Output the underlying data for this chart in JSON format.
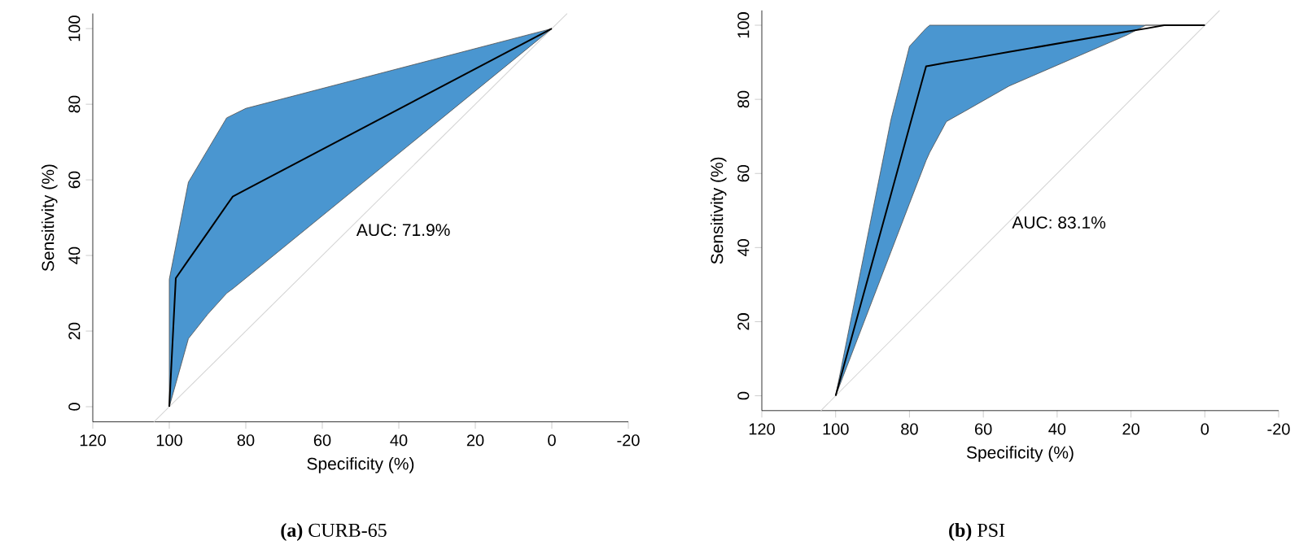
{
  "chart_data": [
    {
      "type": "line",
      "xlabel": "Specificity (%)",
      "ylabel": "Sensitivity (%)",
      "xlim": [
        120,
        -20
      ],
      "ylim": [
        -4,
        104
      ],
      "xticks": [
        120,
        100,
        80,
        60,
        40,
        20,
        0,
        -20
      ],
      "yticks": [
        0,
        20,
        40,
        60,
        80,
        100
      ],
      "grid": false,
      "marker": "none",
      "line_style": "solid",
      "annotations": [
        "AUC: 71.9%",
        "**(a)** CURB-65"
      ],
      "series": [
        {
          "color": "#d3d3d3",
          "x": [
            104,
            -4
          ],
          "values": [
            -4,
            104
          ]
        },
        {
          "color": "#000000",
          "x": [
            100,
            98.3,
            95,
            90,
            85,
            83.4,
            80,
            0
          ],
          "values": [
            0,
            34,
            38.8,
            46.0,
            53.3,
            55.6,
            57.4,
            100
          ],
          "lower": [
            0,
            6.1,
            18,
            24.4,
            30,
            31.2,
            34,
            100
          ],
          "upper": [
            33.7,
            42.4,
            59.4,
            67.9,
            76.4,
            77.2,
            78.9,
            100
          ]
        }
      ]
    },
    {
      "type": "line",
      "xlabel": "Specificity (%)",
      "ylabel": "Sensitivity (%)",
      "xlim": [
        120,
        -20
      ],
      "ylim": [
        -4,
        104
      ],
      "xticks": [
        120,
        100,
        80,
        60,
        40,
        20,
        0,
        -20
      ],
      "yticks": [
        0,
        20,
        40,
        60,
        80,
        100
      ],
      "grid": false,
      "marker": "none",
      "line_style": "solid",
      "annotations": [
        "AUC: 83.1%",
        "**(b)** PSI"
      ],
      "series": [
        {
          "color": "#d3d3d3",
          "x": [
            104,
            -4
          ],
          "values": [
            -4,
            104
          ]
        },
        {
          "color": "#000000",
          "x": [
            100,
            85,
            80,
            75.5,
            74.5,
            70,
            65,
            53,
            21,
            16,
            11,
            0
          ],
          "values": [
            0,
            54.4,
            72.6,
            88.9,
            89.1,
            89.9,
            90.7,
            92.8,
            98.3,
            99.1,
            100,
            100
          ],
          "lower": [
            0,
            38.9,
            51.9,
            63.5,
            65.7,
            74,
            76.8,
            83.6,
            97.4,
            100,
            100,
            100
          ],
          "upper": [
            0,
            74.6,
            94.3,
            99.2,
            100,
            100,
            100,
            100,
            100,
            100,
            100,
            100
          ]
        }
      ]
    }
  ]
}
